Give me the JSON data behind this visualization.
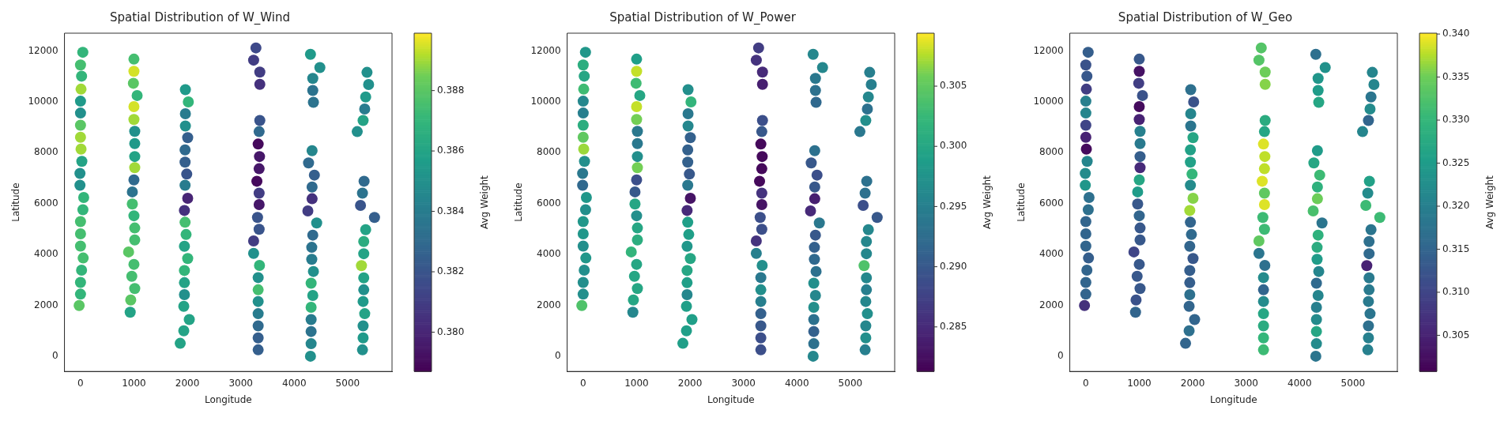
{
  "chart_data": [
    {
      "type": "scatter",
      "title": "Spatial Distribution of W_Wind",
      "xlabel": "Longitude",
      "ylabel": "Latitude",
      "clabel": "Avg Weight",
      "marker": "circle",
      "x": [
        43,
        0,
        20,
        10,
        0,
        0,
        0,
        0,
        10,
        25,
        -10,
        -10,
        60,
        45,
        0,
        0,
        0,
        50,
        20,
        0,
        0,
        -25,
        1000,
        1000,
        990,
        1060,
        1000,
        1000,
        1015,
        1015,
        1015,
        1015,
        1000,
        970,
        970,
        1000,
        1015,
        1015,
        900,
        1000,
        960,
        1015,
        940,
        930,
        1963,
        2018,
        1963,
        1963,
        2006,
        1957,
        1957,
        1988,
        1957,
        2006,
        1945,
        1957,
        1976,
        1945,
        2006,
        1945,
        1945,
        1945,
        1933,
        2036,
        1933,
        1866,
        3283,
        3240,
        3356,
        3356,
        3356,
        3343,
        3325,
        3350,
        3343,
        3301,
        3343,
        3343,
        3313,
        3343,
        3240,
        3240,
        3350,
        3325,
        3325,
        3325,
        3325,
        3325,
        3325,
        3325,
        4304,
        4480,
        4347,
        4347,
        4359,
        4334,
        4268,
        4377,
        4334,
        4334,
        4255,
        4420,
        4347,
        4328,
        4328,
        4359,
        4316,
        4347,
        4316,
        4316,
        4316,
        4316,
        4304,
        5362,
        5392,
        5337,
        5319,
        5289,
        5179,
        5307,
        5277,
        5240,
        5502,
        5337,
        5301,
        5301,
        5258,
        5301,
        5301,
        5289,
        5319,
        5289,
        5289,
        5277
      ],
      "values": [
        11950,
        11450,
        11010,
        10500,
        10025,
        9560,
        9080,
        8610,
        8140,
        7660,
        7185,
        6720,
        6240,
        5760,
        5290,
        4810,
        4330,
        3860,
        3380,
        2900,
        2440,
        1990,
        11680,
        11200,
        10730,
        10250,
        9810,
        9305,
        8840,
        8360,
        7850,
        7410,
        6930,
        6460,
        5985,
        5520,
        5040,
        4570,
        4100,
        3610,
        3140,
        2660,
        2210,
        1730,
        10480,
        10000,
        9530,
        9050,
        8590,
        8110,
        7630,
        7160,
        6720,
        6210,
        5730,
        5265,
        4785,
        4320,
        3840,
        3370,
        2890,
        2420,
        1960,
        1440,
        1000,
        505,
        12120,
        11640,
        11170,
        10690,
        9270,
        8830,
        8340,
        7850,
        7370,
        6880,
        6410,
        5960,
        5455,
        4990,
        4530,
        4040,
        3570,
        3090,
        2610,
        2150,
        1670,
        1190,
        720,
        250,
        11870,
        11350,
        10920,
        10450,
        9980,
        8080,
        7600,
        7120,
        6650,
        6190,
        5710,
        5240,
        4760,
        4280,
        3810,
        3330,
        2870,
        2390,
        1920,
        1440,
        970,
        490,
        0,
        11160,
        10680,
        10190,
        9720,
        9270,
        8830,
        6880,
        6410,
        5930,
        5455,
        4975,
        4510,
        4030,
        3560,
        3080,
        2610,
        2150,
        1670,
        1190,
        720,
        250
      ],
      "cvalues": [
        0.387,
        0.3875,
        0.387,
        0.389,
        0.3855,
        0.385,
        0.388,
        0.389,
        0.389,
        0.386,
        0.385,
        0.385,
        0.387,
        0.387,
        0.3875,
        0.3875,
        0.3875,
        0.3875,
        0.387,
        0.387,
        0.387,
        0.388,
        0.3875,
        0.3895,
        0.388,
        0.387,
        0.3895,
        0.389,
        0.385,
        0.3855,
        0.386,
        0.389,
        0.383,
        0.3835,
        0.3875,
        0.387,
        0.3875,
        0.3875,
        0.388,
        0.3875,
        0.3875,
        0.3875,
        0.388,
        0.386,
        0.3855,
        0.387,
        0.384,
        0.385,
        0.3825,
        0.383,
        0.3825,
        0.382,
        0.384,
        0.38,
        0.3805,
        0.3875,
        0.387,
        0.386,
        0.387,
        0.387,
        0.386,
        0.385,
        0.386,
        0.386,
        0.386,
        0.386,
        0.3815,
        0.381,
        0.381,
        0.3805,
        0.382,
        0.383,
        0.379,
        0.3795,
        0.3795,
        0.379,
        0.381,
        0.3795,
        0.382,
        0.382,
        0.381,
        0.385,
        0.387,
        0.385,
        0.3875,
        0.385,
        0.384,
        0.383,
        0.3825,
        0.3825,
        0.3855,
        0.385,
        0.3845,
        0.3835,
        0.3835,
        0.3845,
        0.383,
        0.3825,
        0.383,
        0.3805,
        0.381,
        0.385,
        0.383,
        0.3835,
        0.384,
        0.385,
        0.387,
        0.386,
        0.387,
        0.384,
        0.3835,
        0.3845,
        0.385,
        0.385,
        0.385,
        0.3855,
        0.384,
        0.386,
        0.385,
        0.383,
        0.3835,
        0.382,
        0.3825,
        0.386,
        0.3865,
        0.386,
        0.389,
        0.386,
        0.385,
        0.3855,
        0.386,
        0.385,
        0.3855,
        0.385
      ],
      "xlim": [
        -300,
        5830
      ],
      "ylim": [
        -600,
        12700
      ],
      "xticks": [
        0,
        1000,
        2000,
        3000,
        4000,
        5000
      ],
      "yticks": [
        0,
        2000,
        4000,
        6000,
        8000,
        10000,
        12000
      ],
      "clim": [
        0.3787,
        0.3899
      ],
      "cticks": [
        {
          "value": 0.38,
          "label": "0.380"
        },
        {
          "value": 0.382,
          "label": "0.382"
        },
        {
          "value": 0.384,
          "label": "0.384"
        },
        {
          "value": 0.386,
          "label": "0.386"
        },
        {
          "value": 0.388,
          "label": "0.388"
        }
      ]
    },
    {
      "type": "scatter",
      "title": "Spatial Distribution of W_Power",
      "xlabel": "Longitude",
      "ylabel": "Latitude",
      "clabel": "Avg Weight",
      "marker": "circle",
      "x": [
        43,
        0,
        20,
        10,
        0,
        0,
        0,
        0,
        10,
        25,
        -10,
        -10,
        60,
        45,
        0,
        0,
        0,
        50,
        20,
        0,
        0,
        -25,
        1000,
        1000,
        990,
        1060,
        1000,
        1000,
        1015,
        1015,
        1015,
        1015,
        1000,
        970,
        970,
        1000,
        1015,
        1015,
        900,
        1000,
        960,
        1015,
        940,
        930,
        1963,
        2018,
        1963,
        1963,
        2006,
        1957,
        1957,
        1988,
        1957,
        2006,
        1945,
        1957,
        1976,
        1945,
        2006,
        1945,
        1945,
        1945,
        1933,
        2036,
        1933,
        1866,
        3283,
        3240,
        3356,
        3356,
        3356,
        3343,
        3325,
        3350,
        3343,
        3301,
        3343,
        3343,
        3313,
        3343,
        3240,
        3240,
        3350,
        3325,
        3325,
        3325,
        3325,
        3325,
        3325,
        3325,
        4304,
        4480,
        4347,
        4347,
        4359,
        4334,
        4268,
        4377,
        4334,
        4334,
        4255,
        4420,
        4347,
        4328,
        4328,
        4359,
        4316,
        4347,
        4316,
        4316,
        4316,
        4316,
        4304,
        5362,
        5392,
        5337,
        5319,
        5289,
        5179,
        5307,
        5277,
        5240,
        5502,
        5337,
        5301,
        5301,
        5258,
        5301,
        5301,
        5289,
        5319,
        5289,
        5289,
        5277
      ],
      "values": [
        11950,
        11450,
        11010,
        10500,
        10025,
        9560,
        9080,
        8610,
        8140,
        7660,
        7185,
        6720,
        6240,
        5760,
        5290,
        4810,
        4330,
        3860,
        3380,
        2900,
        2440,
        1990,
        11680,
        11200,
        10730,
        10250,
        9810,
        9305,
        8840,
        8360,
        7850,
        7410,
        6930,
        6460,
        5985,
        5520,
        5040,
        4570,
        4100,
        3610,
        3140,
        2660,
        2210,
        1730,
        10480,
        10000,
        9530,
        9050,
        8590,
        8110,
        7630,
        7160,
        6720,
        6210,
        5730,
        5265,
        4785,
        4320,
        3840,
        3370,
        2890,
        2420,
        1960,
        1440,
        1000,
        505,
        12120,
        11640,
        11170,
        10690,
        9270,
        8830,
        8340,
        7850,
        7370,
        6880,
        6410,
        5960,
        5455,
        4990,
        4530,
        4040,
        3570,
        3090,
        2610,
        2150,
        1670,
        1190,
        720,
        250,
        11870,
        11350,
        10920,
        10450,
        9980,
        8080,
        7600,
        7120,
        6650,
        6190,
        5710,
        5240,
        4760,
        4280,
        3810,
        3330,
        2870,
        2390,
        1920,
        1440,
        970,
        490,
        0,
        11160,
        10680,
        10190,
        9720,
        9270,
        8830,
        6880,
        6410,
        5930,
        5455,
        4975,
        4510,
        4030,
        3560,
        3080,
        2610,
        2150,
        1670,
        1190,
        720,
        250
      ],
      "cvalues": [
        0.298,
        0.301,
        0.3,
        0.303,
        0.296,
        0.295,
        0.301,
        0.305,
        0.307,
        0.297,
        0.294,
        0.292,
        0.298,
        0.297,
        0.298,
        0.298,
        0.297,
        0.298,
        0.297,
        0.297,
        0.297,
        0.304,
        0.299,
        0.308,
        0.303,
        0.3,
        0.308,
        0.306,
        0.294,
        0.294,
        0.297,
        0.306,
        0.289,
        0.29,
        0.3,
        0.297,
        0.3,
        0.301,
        0.302,
        0.3,
        0.3,
        0.3,
        0.3,
        0.296,
        0.297,
        0.302,
        0.294,
        0.296,
        0.291,
        0.291,
        0.291,
        0.29,
        0.294,
        0.283,
        0.285,
        0.299,
        0.299,
        0.298,
        0.3,
        0.3,
        0.299,
        0.296,
        0.299,
        0.299,
        0.299,
        0.299,
        0.287,
        0.286,
        0.285,
        0.284,
        0.289,
        0.29,
        0.282,
        0.282,
        0.282,
        0.282,
        0.286,
        0.283,
        0.289,
        0.289,
        0.286,
        0.295,
        0.297,
        0.294,
        0.297,
        0.295,
        0.291,
        0.29,
        0.289,
        0.289,
        0.296,
        0.296,
        0.294,
        0.293,
        0.292,
        0.293,
        0.29,
        0.289,
        0.29,
        0.284,
        0.285,
        0.294,
        0.29,
        0.291,
        0.292,
        0.293,
        0.297,
        0.296,
        0.297,
        0.293,
        0.291,
        0.293,
        0.296,
        0.295,
        0.295,
        0.296,
        0.293,
        0.297,
        0.294,
        0.293,
        0.293,
        0.289,
        0.29,
        0.296,
        0.296,
        0.296,
        0.304,
        0.296,
        0.295,
        0.296,
        0.297,
        0.296,
        0.297,
        0.295
      ],
      "xlim": [
        -300,
        5830
      ],
      "ylim": [
        -600,
        12700
      ],
      "xticks": [
        0,
        1000,
        2000,
        3000,
        4000,
        5000
      ],
      "yticks": [
        0,
        2000,
        4000,
        6000,
        8000,
        10000,
        12000
      ],
      "clim": [
        0.2813,
        0.3094
      ],
      "cticks": [
        {
          "value": 0.285,
          "label": "0.285"
        },
        {
          "value": 0.29,
          "label": "0.290"
        },
        {
          "value": 0.295,
          "label": "0.295"
        },
        {
          "value": 0.3,
          "label": "0.300"
        },
        {
          "value": 0.305,
          "label": "0.305"
        }
      ]
    },
    {
      "type": "scatter",
      "title": "Spatial Distribution of W_Geo",
      "xlabel": "Longitude",
      "ylabel": "Latitude",
      "clabel": "Avg Weight",
      "marker": "circle",
      "x": [
        43,
        0,
        20,
        10,
        0,
        0,
        0,
        0,
        10,
        25,
        -10,
        -10,
        60,
        45,
        0,
        0,
        0,
        50,
        20,
        0,
        0,
        -25,
        1000,
        1000,
        990,
        1060,
        1000,
        1000,
        1015,
        1015,
        1015,
        1015,
        1000,
        970,
        970,
        1000,
        1015,
        1015,
        900,
        1000,
        960,
        1015,
        940,
        930,
        1963,
        2018,
        1963,
        1963,
        2006,
        1957,
        1957,
        1988,
        1957,
        2006,
        1945,
        1957,
        1976,
        1945,
        2006,
        1945,
        1945,
        1945,
        1933,
        2036,
        1933,
        1866,
        3283,
        3240,
        3356,
        3356,
        3356,
        3343,
        3325,
        3350,
        3343,
        3301,
        3343,
        3343,
        3313,
        3343,
        3240,
        3240,
        3350,
        3325,
        3325,
        3325,
        3325,
        3325,
        3325,
        3325,
        4304,
        4480,
        4347,
        4347,
        4359,
        4334,
        4268,
        4377,
        4334,
        4334,
        4255,
        4420,
        4347,
        4328,
        4328,
        4359,
        4316,
        4347,
        4316,
        4316,
        4316,
        4316,
        4304,
        5362,
        5392,
        5337,
        5319,
        5289,
        5179,
        5307,
        5277,
        5240,
        5502,
        5337,
        5301,
        5301,
        5258,
        5301,
        5301,
        5289,
        5319,
        5289,
        5289,
        5277
      ],
      "values": [
        11950,
        11450,
        11010,
        10500,
        10025,
        9560,
        9080,
        8610,
        8140,
        7660,
        7185,
        6720,
        6240,
        5760,
        5290,
        4810,
        4330,
        3860,
        3380,
        2900,
        2440,
        1990,
        11680,
        11200,
        10730,
        10250,
        9810,
        9305,
        8840,
        8360,
        7850,
        7410,
        6930,
        6460,
        5985,
        5520,
        5040,
        4570,
        4100,
        3610,
        3140,
        2660,
        2210,
        1730,
        10480,
        10000,
        9530,
        9050,
        8590,
        8110,
        7630,
        7160,
        6720,
        6210,
        5730,
        5265,
        4785,
        4320,
        3840,
        3370,
        2890,
        2420,
        1960,
        1440,
        1000,
        505,
        12120,
        11640,
        11170,
        10690,
        9270,
        8830,
        8340,
        7850,
        7370,
        6880,
        6410,
        5960,
        5455,
        4990,
        4530,
        4040,
        3570,
        3090,
        2610,
        2150,
        1670,
        1190,
        720,
        250,
        11870,
        11350,
        10920,
        10450,
        9980,
        8080,
        7600,
        7120,
        6650,
        6190,
        5710,
        5240,
        4760,
        4280,
        3810,
        3330,
        2870,
        2390,
        1920,
        1440,
        970,
        490,
        0,
        11160,
        10680,
        10190,
        9720,
        9270,
        8830,
        6880,
        6410,
        5930,
        5455,
        4975,
        4510,
        4030,
        3560,
        3080,
        2610,
        2150,
        1670,
        1190,
        720,
        250
      ],
      "cvalues": [
        0.314,
        0.312,
        0.313,
        0.309,
        0.32,
        0.321,
        0.31,
        0.305,
        0.302,
        0.321,
        0.322,
        0.324,
        0.317,
        0.317,
        0.315,
        0.315,
        0.315,
        0.314,
        0.315,
        0.315,
        0.315,
        0.307,
        0.313,
        0.303,
        0.309,
        0.312,
        0.302,
        0.305,
        0.32,
        0.319,
        0.314,
        0.306,
        0.327,
        0.325,
        0.313,
        0.315,
        0.313,
        0.313,
        0.31,
        0.313,
        0.313,
        0.313,
        0.312,
        0.315,
        0.317,
        0.312,
        0.321,
        0.318,
        0.327,
        0.326,
        0.326,
        0.33,
        0.322,
        0.336,
        0.337,
        0.315,
        0.316,
        0.315,
        0.313,
        0.314,
        0.314,
        0.317,
        0.315,
        0.315,
        0.317,
        0.315,
        0.333,
        0.333,
        0.335,
        0.336,
        0.328,
        0.327,
        0.339,
        0.338,
        0.338,
        0.339,
        0.334,
        0.339,
        0.331,
        0.331,
        0.334,
        0.318,
        0.317,
        0.322,
        0.315,
        0.322,
        0.327,
        0.328,
        0.33,
        0.331,
        0.317,
        0.323,
        0.324,
        0.325,
        0.327,
        0.325,
        0.327,
        0.331,
        0.329,
        0.335,
        0.332,
        0.318,
        0.329,
        0.328,
        0.325,
        0.321,
        0.316,
        0.321,
        0.32,
        0.322,
        0.327,
        0.322,
        0.318,
        0.321,
        0.321,
        0.318,
        0.322,
        0.315,
        0.321,
        0.326,
        0.322,
        0.331,
        0.331,
        0.318,
        0.317,
        0.316,
        0.305,
        0.319,
        0.319,
        0.319,
        0.318,
        0.317,
        0.32,
        0.32
      ],
      "xlim": [
        -300,
        5830
      ],
      "ylim": [
        -600,
        12700
      ],
      "xticks": [
        0,
        1000,
        2000,
        3000,
        4000,
        5000
      ],
      "yticks": [
        0,
        2000,
        4000,
        6000,
        8000,
        10000,
        12000
      ],
      "clim": [
        0.3008,
        0.3401
      ],
      "cticks": [
        {
          "value": 0.305,
          "label": "0.305"
        },
        {
          "value": 0.31,
          "label": "0.310"
        },
        {
          "value": 0.315,
          "label": "0.315"
        },
        {
          "value": 0.32,
          "label": "0.320"
        },
        {
          "value": 0.325,
          "label": "0.325"
        },
        {
          "value": 0.33,
          "label": "0.330"
        },
        {
          "value": 0.335,
          "label": "0.335"
        },
        {
          "value": 0.34,
          "label": "0.340"
        }
      ]
    }
  ]
}
